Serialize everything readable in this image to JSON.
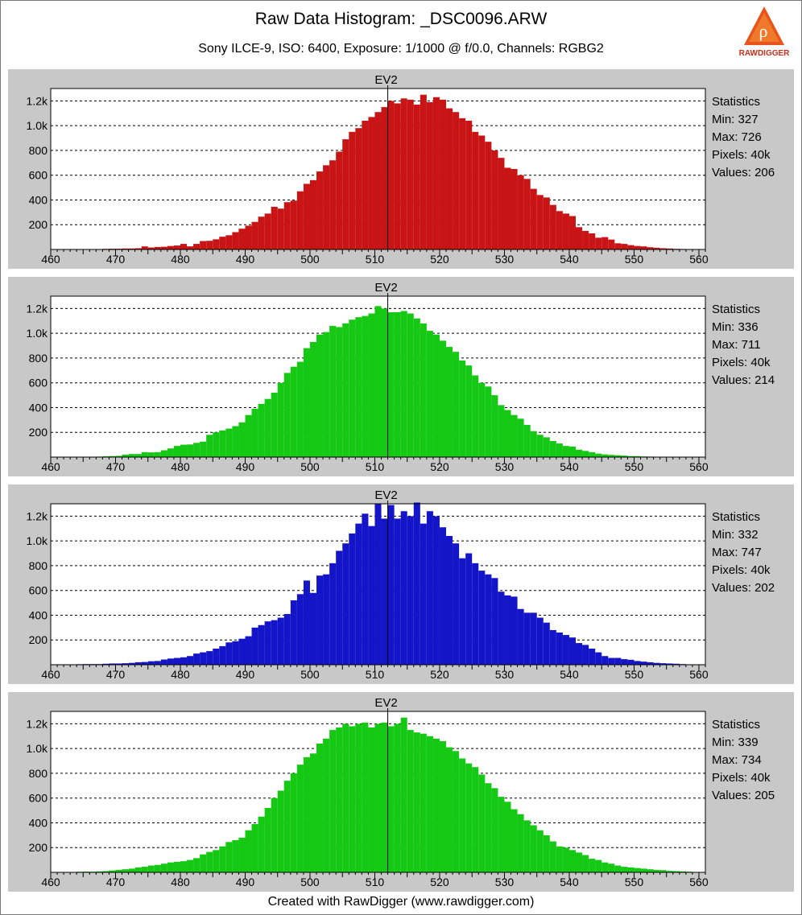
{
  "header": {
    "title": "Raw Data Histogram: _DSC0096.ARW",
    "subtitle": "Sony ILCE-9, ISO: 6400, Exposure: 1/1000 @ f/0.0, Channels: RGBG2",
    "logo_text": "RAWDIGGER"
  },
  "footer": {
    "text": "Created with RawDigger (www.rawdigger.com)"
  },
  "chart_data": [
    {
      "type": "bar",
      "title": "EV2",
      "channel": "R",
      "color": "#c81414",
      "xlim": [
        460,
        561
      ],
      "ylim": [
        0,
        1300
      ],
      "xticks": [
        "460",
        "470",
        "480",
        "490",
        "500",
        "510",
        "520",
        "530",
        "540",
        "550",
        "560"
      ],
      "yticks": [
        "200",
        "400",
        "600",
        "800",
        "1.0k",
        "1.2k"
      ],
      "marker_x": 512,
      "x_start": 460,
      "values": [
        0,
        2,
        0,
        0,
        0,
        0,
        0,
        3,
        5,
        6,
        6,
        8,
        8,
        10,
        25,
        16,
        20,
        22,
        28,
        32,
        45,
        25,
        45,
        68,
        70,
        82,
        103,
        115,
        140,
        168,
        192,
        223,
        265,
        290,
        345,
        330,
        382,
        395,
        470,
        530,
        560,
        630,
        680,
        720,
        790,
        890,
        950,
        980,
        1040,
        1070,
        1110,
        1150,
        1200,
        1180,
        1220,
        1210,
        1170,
        1250,
        1190,
        1230,
        1210,
        1140,
        1110,
        1060,
        1040,
        950,
        920,
        870,
        800,
        740,
        660,
        650,
        600,
        570,
        490,
        440,
        420,
        360,
        310,
        290,
        270,
        180,
        150,
        130,
        95,
        100,
        80,
        50,
        45,
        35,
        28,
        25,
        18,
        14,
        10,
        8,
        5,
        4,
        3,
        3,
        1
      ],
      "stats": {
        "heading": "Statistics",
        "min": "Min: 327",
        "max": "Max: 726",
        "pixels": "Pixels: 40k",
        "values": "Values: 206"
      }
    },
    {
      "type": "bar",
      "title": "EV2",
      "channel": "G",
      "color": "#14c814",
      "xlim": [
        460,
        561
      ],
      "ylim": [
        0,
        1300
      ],
      "xticks": [
        "460",
        "470",
        "480",
        "490",
        "500",
        "510",
        "520",
        "530",
        "540",
        "550",
        "560"
      ],
      "yticks": [
        "200",
        "400",
        "600",
        "800",
        "1.0k",
        "1.2k"
      ],
      "marker_x": 512,
      "x_start": 460,
      "values": [
        0,
        0,
        0,
        0,
        0,
        0,
        0,
        4,
        6,
        8,
        10,
        20,
        25,
        25,
        40,
        38,
        40,
        55,
        70,
        90,
        100,
        102,
        115,
        125,
        180,
        200,
        215,
        230,
        250,
        280,
        340,
        390,
        430,
        470,
        520,
        600,
        680,
        730,
        770,
        880,
        930,
        990,
        1010,
        1060,
        1050,
        1080,
        1110,
        1130,
        1140,
        1160,
        1220,
        1200,
        1170,
        1170,
        1180,
        1160,
        1120,
        1080,
        1020,
        990,
        940,
        890,
        850,
        780,
        740,
        660,
        600,
        570,
        500,
        420,
        380,
        340,
        310,
        260,
        210,
        180,
        160,
        130,
        110,
        90,
        85,
        60,
        50,
        40,
        28,
        22,
        18,
        15,
        12,
        8,
        8,
        5,
        4,
        3,
        2,
        1,
        0,
        0,
        0,
        0,
        0
      ],
      "stats": {
        "heading": "Statistics",
        "min": "Min: 336",
        "max": "Max: 711",
        "pixels": "Pixels: 40k",
        "values": "Values: 214"
      }
    },
    {
      "type": "bar",
      "title": "EV2",
      "channel": "B",
      "color": "#1414c8",
      "xlim": [
        460,
        561
      ],
      "ylim": [
        0,
        1300
      ],
      "xticks": [
        "460",
        "470",
        "480",
        "490",
        "500",
        "510",
        "520",
        "530",
        "540",
        "550",
        "560"
      ],
      "yticks": [
        "200",
        "400",
        "600",
        "800",
        "1.0k",
        "1.2k"
      ],
      "marker_x": 512,
      "x_start": 460,
      "values": [
        0,
        0,
        0,
        3,
        4,
        5,
        5,
        5,
        8,
        10,
        10,
        12,
        15,
        20,
        22,
        28,
        30,
        42,
        50,
        55,
        60,
        70,
        90,
        100,
        110,
        130,
        150,
        180,
        190,
        210,
        230,
        300,
        320,
        350,
        360,
        380,
        410,
        520,
        570,
        680,
        580,
        720,
        730,
        820,
        920,
        980,
        1060,
        1140,
        1220,
        1120,
        1300,
        1180,
        1290,
        1180,
        1240,
        1200,
        1310,
        1140,
        1240,
        1200,
        1110,
        1040,
        980,
        860,
        900,
        820,
        760,
        730,
        700,
        590,
        560,
        550,
        450,
        420,
        420,
        380,
        340,
        280,
        260,
        240,
        220,
        175,
        160,
        130,
        100,
        70,
        55,
        55,
        45,
        40,
        30,
        25,
        20,
        15,
        12,
        10,
        8,
        5,
        3,
        2,
        1
      ],
      "stats": {
        "heading": "Statistics",
        "min": "Min: 332",
        "max": "Max: 747",
        "pixels": "Pixels: 40k",
        "values": "Values: 202"
      }
    },
    {
      "type": "bar",
      "title": "EV2",
      "channel": "G2",
      "color": "#14c814",
      "xlim": [
        460,
        561
      ],
      "ylim": [
        0,
        1300
      ],
      "xticks": [
        "460",
        "470",
        "480",
        "490",
        "500",
        "510",
        "520",
        "530",
        "540",
        "550",
        "560"
      ],
      "yticks": [
        "200",
        "400",
        "600",
        "800",
        "1.0k",
        "1.2k"
      ],
      "marker_x": 512,
      "x_start": 460,
      "values": [
        0,
        0,
        0,
        3,
        5,
        6,
        5,
        8,
        10,
        15,
        20,
        25,
        30,
        40,
        45,
        55,
        60,
        70,
        80,
        85,
        90,
        100,
        115,
        145,
        165,
        180,
        210,
        245,
        260,
        280,
        340,
        390,
        450,
        520,
        600,
        660,
        740,
        800,
        870,
        930,
        960,
        1040,
        1080,
        1150,
        1170,
        1200,
        1180,
        1200,
        1210,
        1170,
        1200,
        1210,
        1180,
        1200,
        1250,
        1150,
        1130,
        1120,
        1100,
        1080,
        1060,
        1010,
        980,
        920,
        880,
        850,
        790,
        720,
        680,
        610,
        570,
        510,
        470,
        420,
        380,
        340,
        300,
        250,
        210,
        200,
        180,
        160,
        140,
        110,
        100,
        80,
        70,
        55,
        45,
        40,
        35,
        30,
        25,
        20,
        18,
        12,
        10,
        8,
        5,
        3,
        0
      ],
      "stats": {
        "heading": "Statistics",
        "min": "Min: 339",
        "max": "Max: 734",
        "pixels": "Pixels: 40k",
        "values": "Values: 205"
      }
    }
  ]
}
